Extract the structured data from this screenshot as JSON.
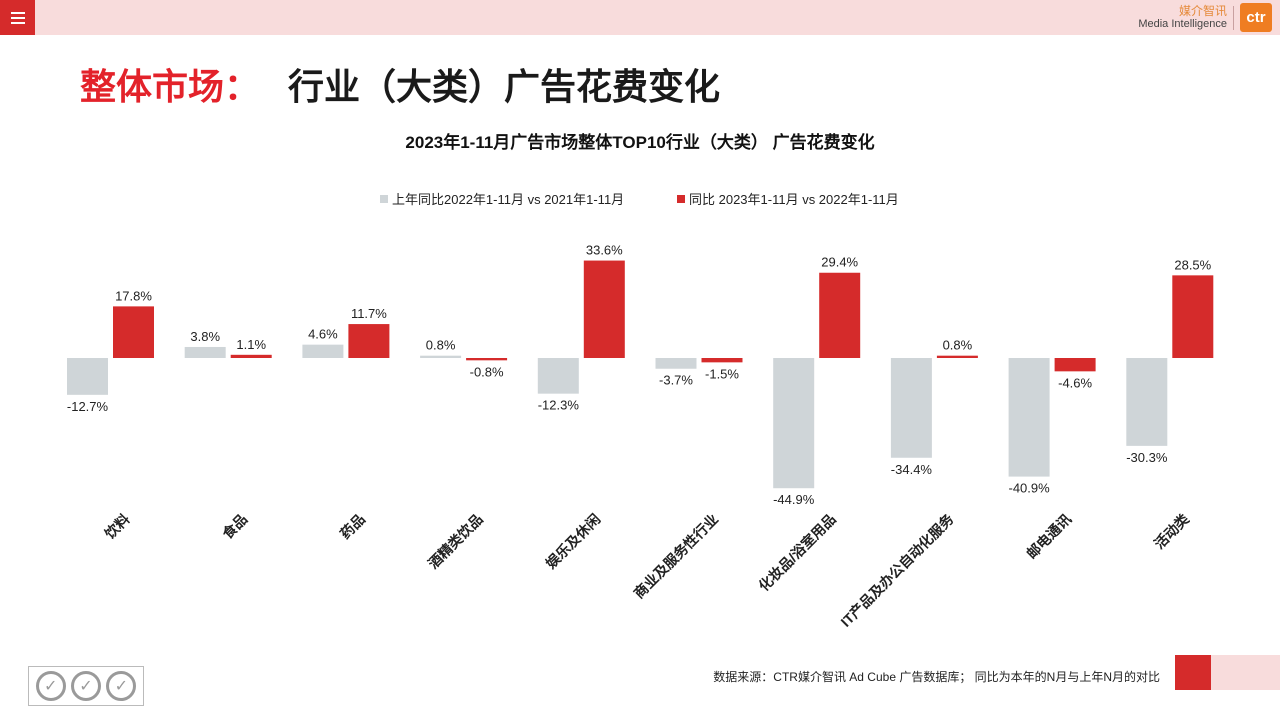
{
  "header": {
    "logo_cn": "媒介智讯",
    "logo_en": "Media Intelligence",
    "logo_mark": "ctr"
  },
  "page_title": {
    "red": "整体市场：",
    "black": "行业（大类）广告花费变化"
  },
  "footer": {
    "source": "数据来源：CTR媒介智讯 Ad Cube 广告数据库；  同比为本年的N月与上年N月的对比"
  },
  "colors": {
    "accent": "#d52b2b",
    "prior_series": "#cfd5d8",
    "current_series": "#d52b2b",
    "topbar": "#f8dcdc"
  },
  "chart_data": {
    "type": "bar",
    "title": "2023年1-11月广告市场整体TOP10行业（大类） 广告花费变化",
    "categories": [
      "饮料",
      "食品",
      "药品",
      "酒精类饮品",
      "娱乐及休闲",
      "商业及服务性行业",
      "化妆品/浴室用品",
      "IT产品及办公自动化服务",
      "邮电通讯",
      "活动类"
    ],
    "series": [
      {
        "name": "上年同比2022年1-11月 vs 2021年1-11月",
        "color": "#cfd5d8",
        "values": [
          -12.7,
          3.8,
          4.6,
          0.8,
          -12.3,
          -3.7,
          -44.9,
          -34.4,
          -40.9,
          -30.3
        ],
        "labels": [
          "-12.7%",
          "3.8%",
          "4.6%",
          "0.8%",
          "-12.3%",
          "-3.7%",
          "-44.9%",
          "-34.4%",
          "-40.9%",
          "-30.3%"
        ]
      },
      {
        "name": "同比 2023年1-11月 vs 2022年1-11月",
        "color": "#d52b2b",
        "values": [
          17.8,
          1.1,
          11.7,
          -0.8,
          33.6,
          -1.5,
          29.4,
          0.8,
          -4.6,
          28.5
        ],
        "labels": [
          "17.8%",
          "1.1%",
          "11.7%",
          "-0.8%",
          "33.6%",
          "-1.5%",
          "29.4%",
          "0.8%",
          "-4.6%",
          "28.5%"
        ]
      }
    ],
    "ylim": [
      -45,
      34
    ],
    "grid": false,
    "legend_position": "top-center",
    "data_labels": true
  }
}
